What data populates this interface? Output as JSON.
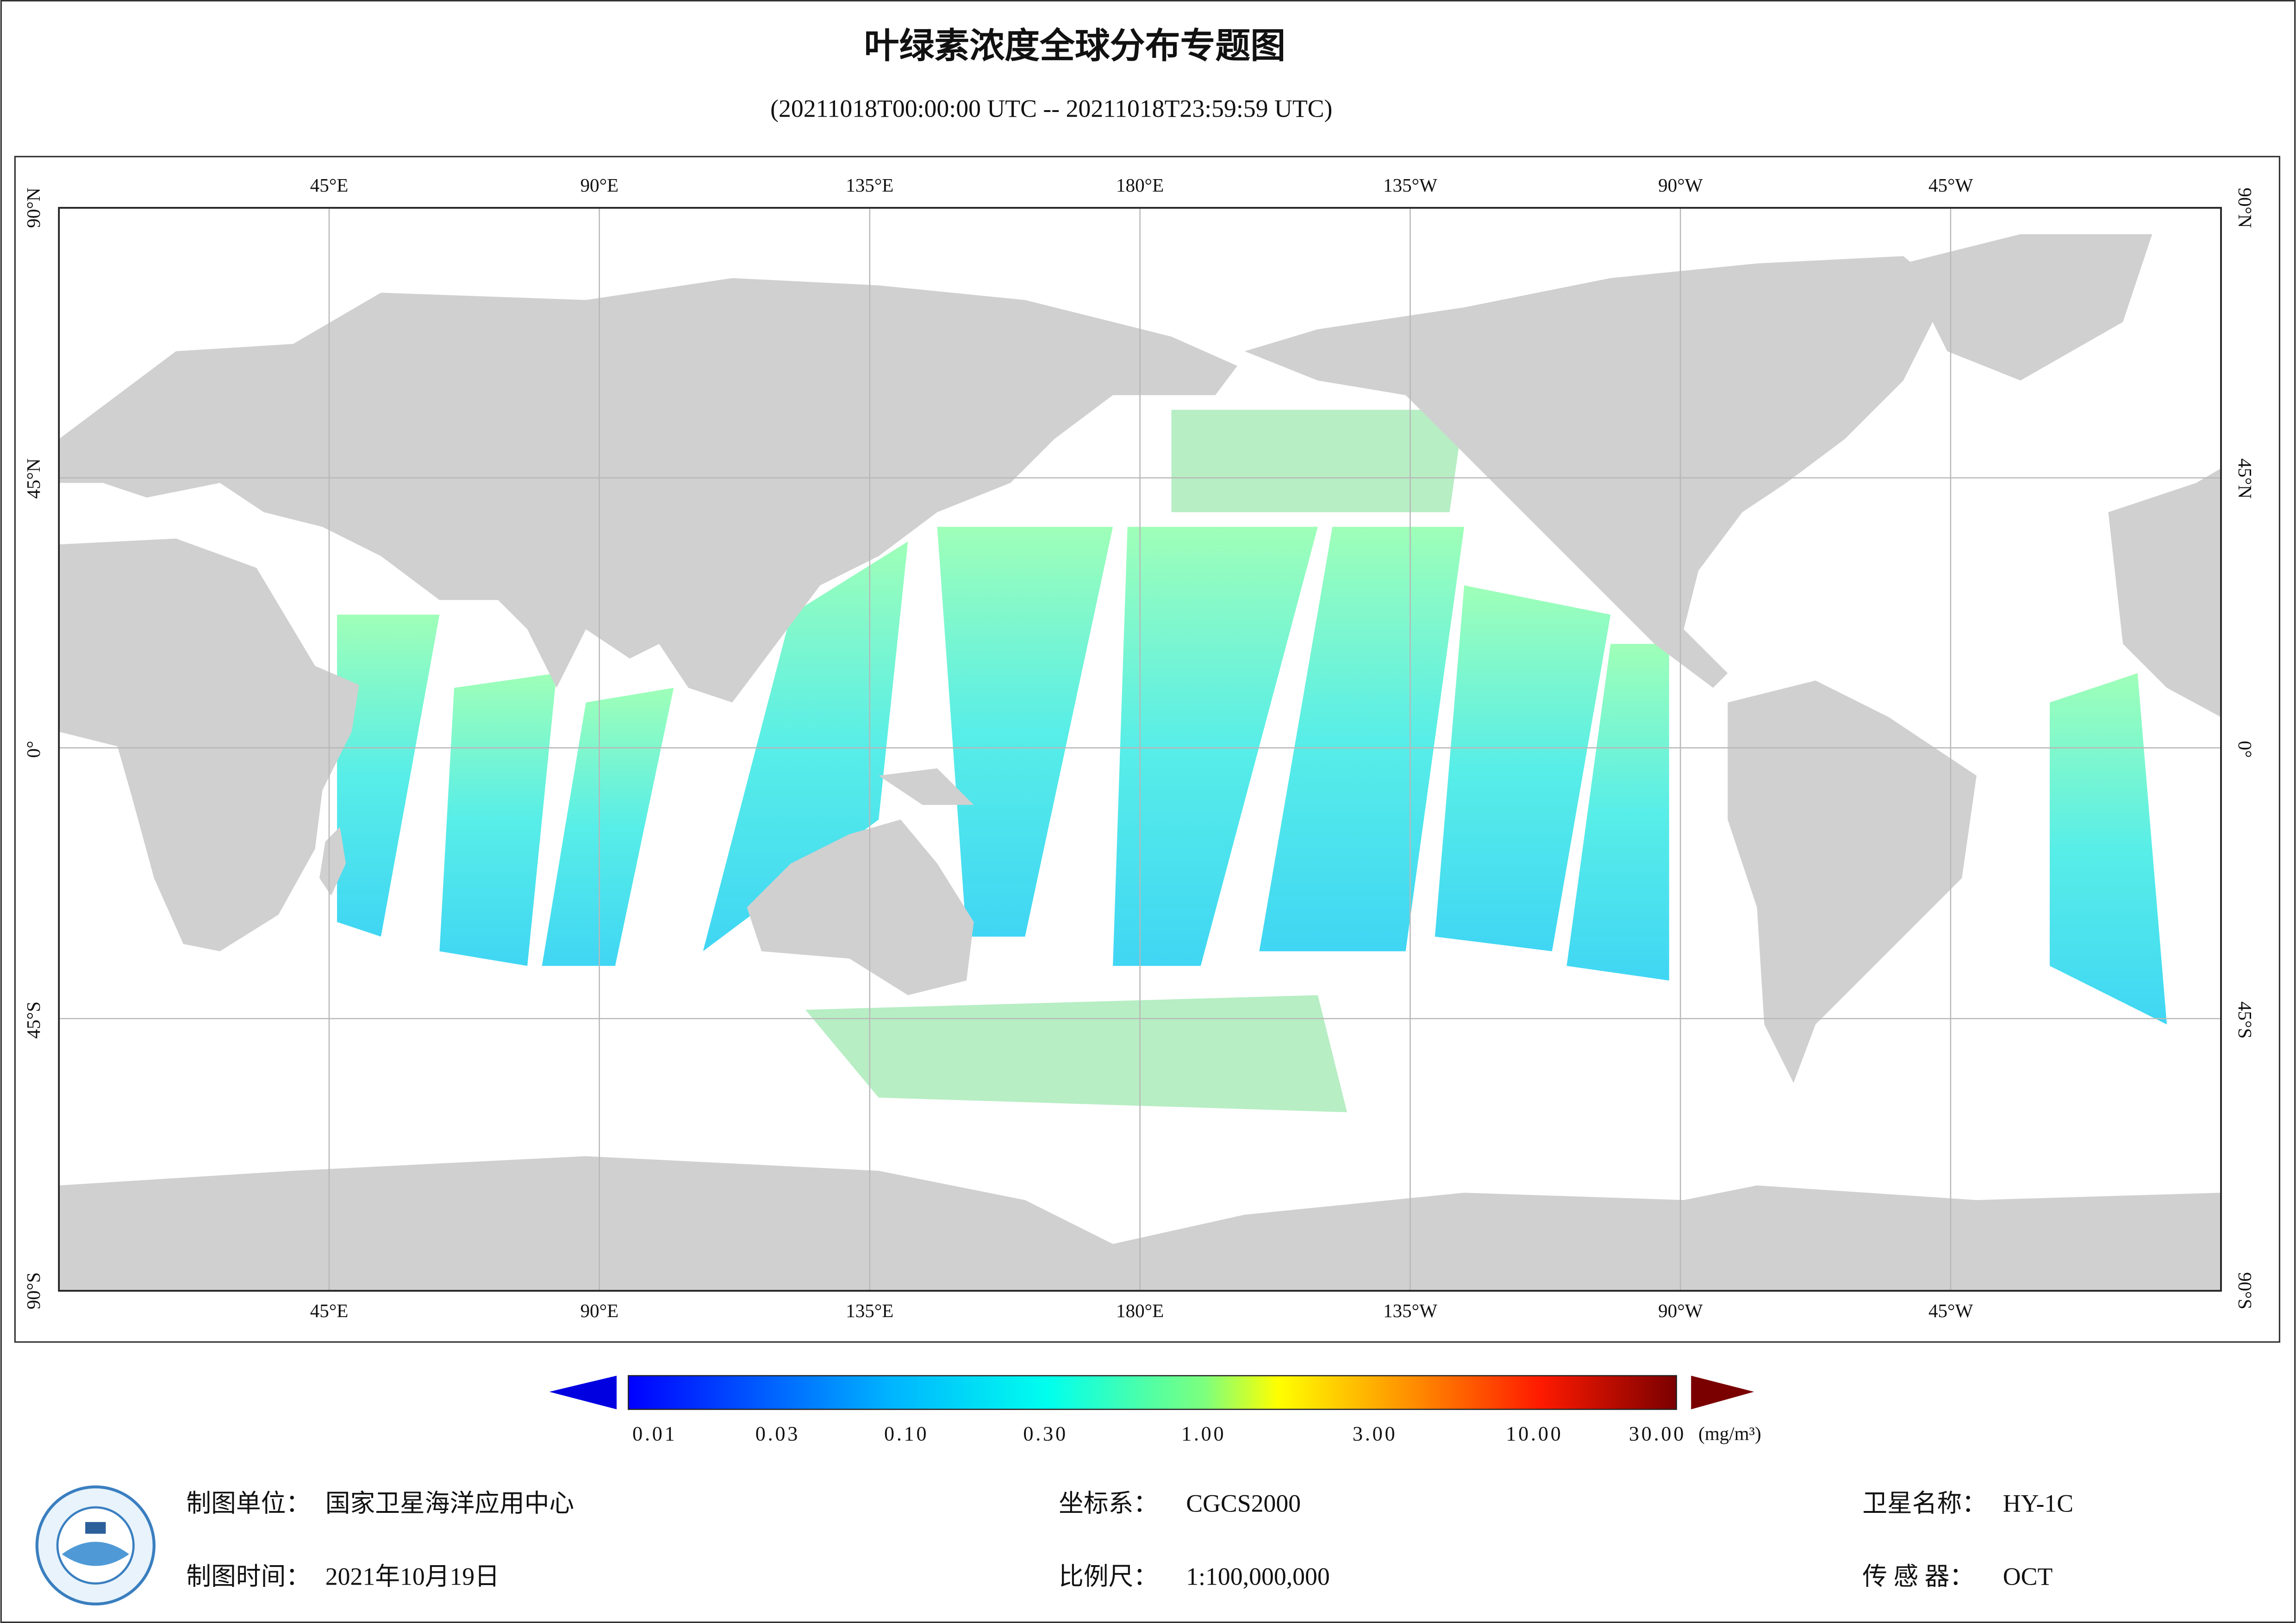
{
  "header": {
    "title": "叶绿素浓度全球分布专题图",
    "subtitle": "(20211018T00:00:00 UTC -- 20211018T23:59:59 UTC)"
  },
  "map": {
    "lon_labels": [
      "45°E",
      "90°E",
      "135°E",
      "180°E",
      "135°W",
      "90°W",
      "45°W"
    ],
    "lat_labels": [
      "90°N",
      "45°N",
      "0°",
      "45°S",
      "90°S"
    ]
  },
  "colorbar": {
    "tick_labels": [
      "0.01",
      "0.03",
      "0.10",
      "0.30",
      "1.00",
      "3.00",
      "10.00",
      "30.00"
    ],
    "unit": "(mg/m³)"
  },
  "footer": {
    "unit_label": "制图单位：",
    "unit_value": "国家卫星海洋应用中心",
    "date_label": "制图时间：",
    "date_value": "2021年10月19日",
    "crs_label": "坐标系：",
    "crs_value": "CGCS2000",
    "scale_label": "比例尺：",
    "scale_value": "1:100,000,000",
    "satellite_label": "卫星名称：",
    "satellite_value": "HY-1C",
    "sensor_label": "传 感 器：",
    "sensor_value": "OCT"
  }
}
